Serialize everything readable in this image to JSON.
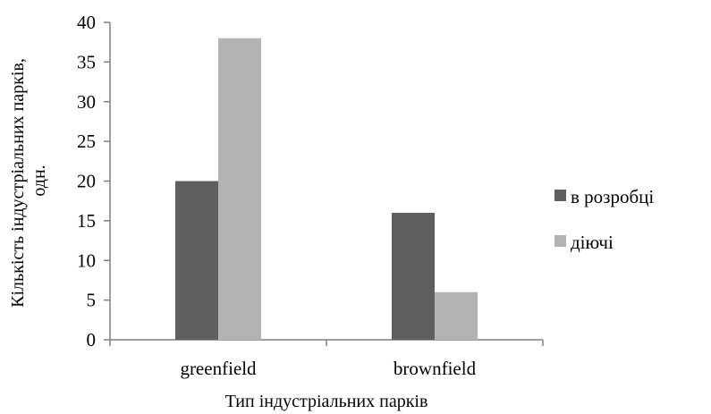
{
  "chart_data": {
    "type": "bar",
    "title": "",
    "xlabel": "Тип індустріальних парків",
    "ylabel_lines": [
      "Кількість індустріальних парків,",
      "одн."
    ],
    "categories": [
      "greenfield",
      "brownfield"
    ],
    "series": [
      {
        "name": "в розробці",
        "values": [
          20,
          16
        ],
        "color": "#5f5f5f"
      },
      {
        "name": "діючі",
        "values": [
          38,
          6
        ],
        "color": "#b3b3b3"
      }
    ],
    "ylim": [
      0,
      40
    ],
    "yticks": [
      0,
      5,
      10,
      15,
      20,
      25,
      30,
      35,
      40
    ],
    "grid": false,
    "legend_position": "right"
  }
}
